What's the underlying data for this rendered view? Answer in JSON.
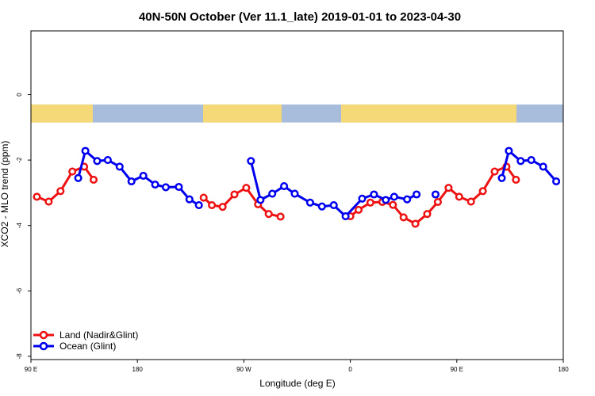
{
  "chart_data": {
    "type": "line",
    "title": "40N-50N October (Ver 11.1_late)   2019-01-01 to 2023-04-30",
    "xlabel": "Longitude (deg E)",
    "ylabel": "XCO2 - MLO trend (ppm)",
    "x_ticks": [
      {
        "value": 90,
        "label": "90 E"
      },
      {
        "value": 180,
        "label": "180"
      },
      {
        "value": 270,
        "label": "90 W"
      },
      {
        "value": 360,
        "label": "0"
      },
      {
        "value": 450,
        "label": "90 E"
      },
      {
        "value": 540,
        "label": "180"
      }
    ],
    "y_ticks": [
      {
        "value": 0,
        "label": "0"
      },
      {
        "value": -2,
        "label": "-2"
      },
      {
        "value": -4,
        "label": "-4"
      },
      {
        "value": -6,
        "label": "-6"
      },
      {
        "value": -8,
        "label": "-8"
      }
    ],
    "xlim": [
      90,
      540
    ],
    "ylim": [
      -8.1,
      1.95
    ],
    "land_band": {
      "y_top": -0.3,
      "y_bottom": -0.85,
      "ocean_color": "#a8bcdc",
      "land_color": "#f5d978"
    },
    "series": [
      {
        "name": "Land (Nadir&Glint)",
        "color": "#ee1111",
        "segments": [
          [
            [
              95,
              -3.12
            ],
            [
              105,
              -3.27
            ],
            [
              115,
              -2.95
            ],
            [
              125,
              -2.35
            ],
            [
              135,
              -2.2
            ],
            [
              143,
              -2.6
            ]
          ],
          [
            [
              236,
              -3.15
            ],
            [
              243,
              -3.38
            ],
            [
              252,
              -3.43
            ],
            [
              262,
              -3.05
            ],
            [
              272,
              -2.85
            ],
            [
              282,
              -3.35
            ],
            [
              291,
              -3.65
            ],
            [
              301,
              -3.73
            ]
          ],
          [
            [
              360,
              -3.72
            ],
            [
              367,
              -3.52
            ],
            [
              377,
              -3.3
            ],
            [
              387,
              -3.28
            ],
            [
              396,
              -3.37
            ],
            [
              405,
              -3.75
            ],
            [
              415,
              -3.95
            ],
            [
              425,
              -3.65
            ],
            [
              434,
              -3.28
            ],
            [
              443,
              -2.85
            ],
            [
              452,
              -3.12
            ],
            [
              462,
              -3.27
            ],
            [
              472,
              -2.95
            ],
            [
              482,
              -2.35
            ],
            [
              492,
              -2.2
            ],
            [
              500,
              -2.6
            ]
          ]
        ]
      },
      {
        "name": "Ocean (Glint)",
        "color": "#0000ee",
        "segments": [
          [
            [
              130,
              -2.55
            ],
            [
              136,
              -1.72
            ],
            [
              146,
              -2.03
            ],
            [
              155,
              -2.0
            ],
            [
              165,
              -2.2
            ],
            [
              175,
              -2.65
            ],
            [
              185,
              -2.48
            ],
            [
              195,
              -2.75
            ],
            [
              204,
              -2.83
            ],
            [
              215,
              -2.82
            ],
            [
              224,
              -3.2
            ],
            [
              232,
              -3.38
            ]
          ],
          [
            [
              276,
              -2.03
            ],
            [
              284,
              -3.22
            ],
            [
              294,
              -3.03
            ],
            [
              304,
              -2.8
            ],
            [
              313,
              -3.03
            ],
            [
              326,
              -3.3
            ],
            [
              336,
              -3.42
            ],
            [
              346,
              -3.38
            ],
            [
              356,
              -3.72
            ],
            [
              370,
              -3.18
            ],
            [
              380,
              -3.05
            ],
            [
              390,
              -3.22
            ],
            [
              397,
              -3.12
            ],
            [
              408,
              -3.2
            ],
            [
              416,
              -3.05
            ]
          ],
          [
            [
              432,
              -3.05
            ]
          ],
          [
            [
              488,
              -2.55
            ],
            [
              494,
              -1.72
            ],
            [
              504,
              -2.03
            ],
            [
              513,
              -2.0
            ],
            [
              523,
              -2.2
            ],
            [
              534,
              -2.65
            ]
          ]
        ]
      }
    ],
    "legend_position": "bottom-left"
  }
}
